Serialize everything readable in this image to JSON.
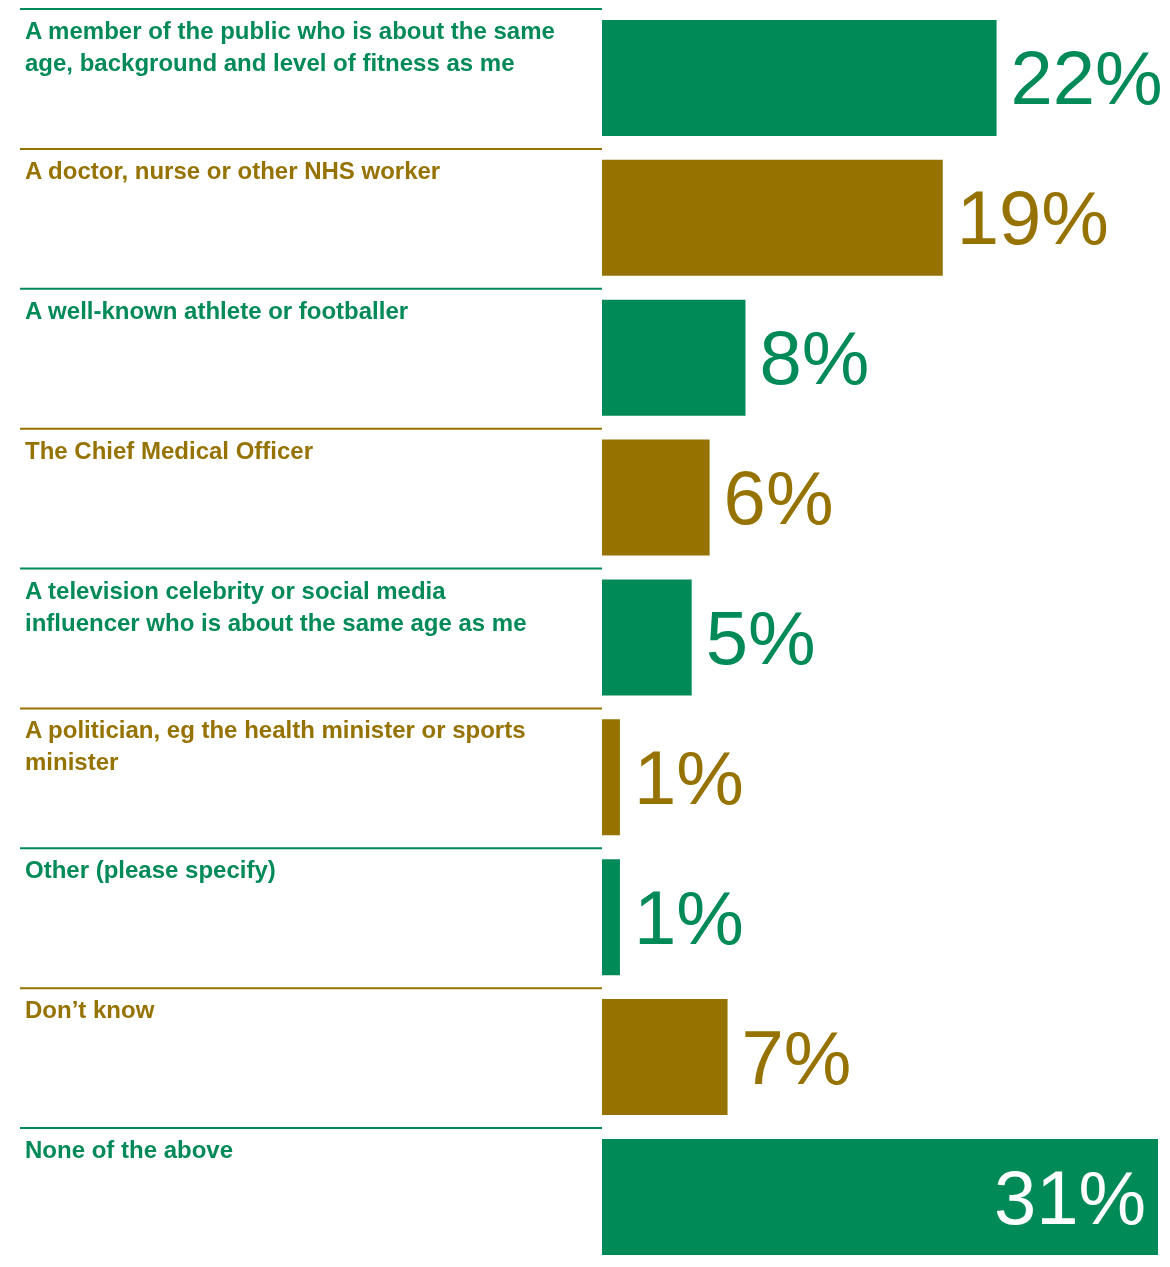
{
  "chart_data": {
    "type": "bar",
    "orientation": "horizontal",
    "categories": [
      "A member of the public who is about the same age, background and level of fitness as me",
      "A doctor, nurse or other NHS worker",
      "A well-known athlete or footballer",
      "The Chief Medical Officer",
      "A television celebrity or social media influencer who is about the same age as me",
      "A politician, eg the health minister or sports minister",
      "Other (please specify)",
      "Don’t know",
      "None of the above"
    ],
    "values": [
      22,
      19,
      8,
      6,
      5,
      1,
      1,
      7,
      31
    ],
    "value_labels": [
      "22%",
      "19%",
      "8%",
      "6%",
      "5%",
      "1%",
      "1%",
      "7%",
      "31%"
    ],
    "colors": [
      "#008a58",
      "#967300",
      "#008a58",
      "#967300",
      "#008a58",
      "#967300",
      "#008a58",
      "#967300",
      "#008a58"
    ]
  }
}
